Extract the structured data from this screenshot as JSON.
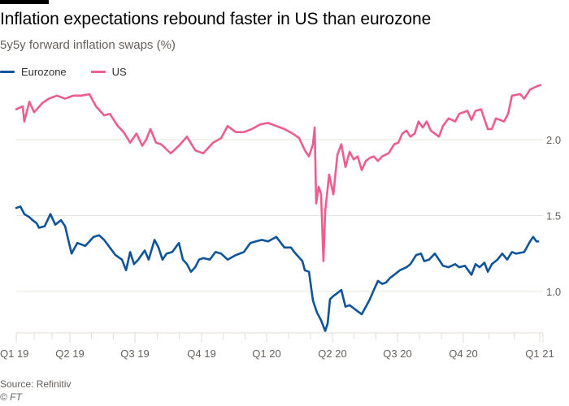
{
  "header": {
    "title": "Inflation expectations rebound faster in US than eurozone",
    "subtitle": "5y5y forward inflation swaps (%)"
  },
  "footer": {
    "source": "Source: Refinitiv",
    "copyright": "© FT"
  },
  "colors": {
    "eurozone": "#0f5499",
    "us": "#eb5e8d",
    "grid": "#e9e4df",
    "text": "#66605c"
  },
  "chart_data": {
    "type": "line",
    "title": "Inflation expectations rebound faster in US than eurozone",
    "subtitle": "5y5y forward inflation swaps (%)",
    "xlabel": "",
    "ylabel": "5y5y forward inflation swaps (%)",
    "x_units": "months since start of Q1 2019",
    "ylim": [
      0.73,
      2.45
    ],
    "y_ticks": [
      1.0,
      1.5,
      2.0
    ],
    "y_tick_labels": [
      "1.0",
      "1.5",
      "2.0"
    ],
    "y_axis_side": "right",
    "grid": true,
    "legend_position": "top-left",
    "x_ticks": [
      0,
      3,
      6,
      9,
      12,
      15,
      18,
      21,
      24
    ],
    "x_tick_labels": [
      "Q1 19",
      "Q2 19",
      "Q3 19",
      "Q4 19",
      "Q1 20",
      "Q2 20",
      "Q3 20",
      "Q4 20",
      "Q1 21"
    ],
    "series": [
      {
        "name": "Eurozone",
        "color": "#0f5499",
        "points": [
          [
            0,
            1.55
          ],
          [
            0.23,
            1.56
          ],
          [
            0.45,
            1.51
          ],
          [
            0.73,
            1.49
          ],
          [
            0.91,
            1.47
          ],
          [
            1.14,
            1.45
          ],
          [
            1.27,
            1.42
          ],
          [
            1.59,
            1.43
          ],
          [
            1.91,
            1.51
          ],
          [
            2.18,
            1.44
          ],
          [
            2.5,
            1.47
          ],
          [
            2.73,
            1.43
          ],
          [
            2.95,
            1.32
          ],
          [
            3.08,
            1.25
          ],
          [
            3.34,
            1.32
          ],
          [
            3.71,
            1.3
          ],
          [
            4.09,
            1.36
          ],
          [
            4.35,
            1.37
          ],
          [
            4.58,
            1.34
          ],
          [
            4.84,
            1.29
          ],
          [
            5.1,
            1.24
          ],
          [
            5.4,
            1.21
          ],
          [
            5.59,
            1.14
          ],
          [
            5.78,
            1.26
          ],
          [
            5.96,
            1.18
          ],
          [
            6.15,
            1.21
          ],
          [
            6.44,
            1.27
          ],
          [
            6.62,
            1.21
          ],
          [
            6.88,
            1.34
          ],
          [
            7.06,
            1.29
          ],
          [
            7.24,
            1.21
          ],
          [
            7.43,
            1.25
          ],
          [
            7.68,
            1.26
          ],
          [
            7.98,
            1.32
          ],
          [
            8.16,
            1.21
          ],
          [
            8.34,
            1.18
          ],
          [
            8.52,
            1.13
          ],
          [
            8.71,
            1.16
          ],
          [
            8.89,
            1.21
          ],
          [
            9.08,
            1.22
          ],
          [
            9.38,
            1.21
          ],
          [
            9.64,
            1.26
          ],
          [
            9.9,
            1.25
          ],
          [
            10.2,
            1.21
          ],
          [
            10.58,
            1.24
          ],
          [
            10.95,
            1.26
          ],
          [
            11.25,
            1.32
          ],
          [
            11.51,
            1.33
          ],
          [
            11.78,
            1.34
          ],
          [
            12.07,
            1.33
          ],
          [
            12.44,
            1.36
          ],
          [
            12.81,
            1.29
          ],
          [
            13.11,
            1.29
          ],
          [
            13.26,
            1.26
          ],
          [
            13.63,
            1.2
          ],
          [
            13.74,
            1.14
          ],
          [
            13.93,
            1.13
          ],
          [
            14.11,
            0.94
          ],
          [
            14.3,
            0.86
          ],
          [
            14.48,
            0.81
          ],
          [
            14.67,
            0.74
          ],
          [
            14.78,
            0.79
          ],
          [
            14.89,
            0.95
          ],
          [
            15.04,
            0.97
          ],
          [
            15.23,
            0.99
          ],
          [
            15.41,
            1.01
          ],
          [
            15.6,
            0.9
          ],
          [
            15.79,
            0.91
          ],
          [
            15.98,
            0.89
          ],
          [
            16.16,
            0.87
          ],
          [
            16.35,
            0.85
          ],
          [
            16.54,
            0.9
          ],
          [
            16.73,
            0.95
          ],
          [
            16.91,
            1.01
          ],
          [
            17.1,
            1.07
          ],
          [
            17.29,
            1.05
          ],
          [
            17.48,
            1.06
          ],
          [
            17.66,
            1.09
          ],
          [
            17.85,
            1.11
          ],
          [
            18.11,
            1.14
          ],
          [
            18.41,
            1.16
          ],
          [
            18.59,
            1.18
          ],
          [
            18.85,
            1.24
          ],
          [
            19.07,
            1.25
          ],
          [
            19.22,
            1.2
          ],
          [
            19.44,
            1.21
          ],
          [
            19.7,
            1.25
          ],
          [
            19.89,
            1.21
          ],
          [
            20.07,
            1.17
          ],
          [
            20.33,
            1.16
          ],
          [
            20.63,
            1.18
          ],
          [
            20.81,
            1.16
          ],
          [
            21.06,
            1.17
          ],
          [
            21.32,
            1.11
          ],
          [
            21.48,
            1.18
          ],
          [
            21.64,
            1.16
          ],
          [
            21.83,
            1.19
          ],
          [
            21.96,
            1.13
          ],
          [
            22.12,
            1.18
          ],
          [
            22.34,
            1.21
          ],
          [
            22.53,
            1.25
          ],
          [
            22.72,
            1.21
          ],
          [
            22.91,
            1.26
          ],
          [
            23.07,
            1.25
          ],
          [
            23.39,
            1.26
          ],
          [
            23.62,
            1.33
          ],
          [
            23.74,
            1.36
          ],
          [
            23.87,
            1.33
          ],
          [
            23.94,
            1.33
          ]
        ]
      },
      {
        "name": "US",
        "color": "#eb5e8d",
        "points": [
          [
            0,
            2.2
          ],
          [
            0.36,
            2.22
          ],
          [
            0.45,
            2.12
          ],
          [
            0.73,
            2.25
          ],
          [
            1.0,
            2.18
          ],
          [
            1.45,
            2.24
          ],
          [
            1.82,
            2.27
          ],
          [
            2.27,
            2.29
          ],
          [
            2.73,
            2.27
          ],
          [
            3.15,
            2.29
          ],
          [
            3.53,
            2.29
          ],
          [
            3.9,
            2.3
          ],
          [
            4.2,
            2.22
          ],
          [
            4.58,
            2.16
          ],
          [
            4.84,
            2.17
          ],
          [
            5.21,
            2.09
          ],
          [
            5.48,
            2.05
          ],
          [
            5.78,
            1.98
          ],
          [
            6.07,
            2.04
          ],
          [
            6.33,
            1.96
          ],
          [
            6.51,
            2.0
          ],
          [
            6.7,
            2.07
          ],
          [
            6.95,
            1.98
          ],
          [
            7.17,
            1.97
          ],
          [
            7.61,
            1.91
          ],
          [
            7.98,
            1.96
          ],
          [
            8.34,
            2.02
          ],
          [
            8.71,
            1.93
          ],
          [
            9.08,
            1.91
          ],
          [
            9.53,
            1.98
          ],
          [
            9.9,
            2.01
          ],
          [
            10.2,
            2.09
          ],
          [
            10.58,
            2.05
          ],
          [
            10.95,
            2.05
          ],
          [
            11.33,
            2.07
          ],
          [
            11.7,
            2.1
          ],
          [
            12.07,
            2.11
          ],
          [
            12.44,
            2.09
          ],
          [
            12.81,
            2.07
          ],
          [
            13.19,
            2.04
          ],
          [
            13.48,
            2.01
          ],
          [
            13.74,
            1.93
          ],
          [
            13.93,
            1.89
          ],
          [
            14.11,
            1.97
          ],
          [
            14.19,
            2.08
          ],
          [
            14.26,
            1.58
          ],
          [
            14.37,
            1.69
          ],
          [
            14.48,
            1.64
          ],
          [
            14.59,
            1.2
          ],
          [
            14.67,
            1.53
          ],
          [
            14.85,
            1.77
          ],
          [
            15.04,
            1.64
          ],
          [
            15.23,
            1.9
          ],
          [
            15.41,
            1.97
          ],
          [
            15.6,
            1.82
          ],
          [
            15.79,
            1.92
          ],
          [
            15.98,
            1.87
          ],
          [
            16.16,
            1.89
          ],
          [
            16.35,
            1.8
          ],
          [
            16.54,
            1.86
          ],
          [
            16.73,
            1.88
          ],
          [
            16.91,
            1.89
          ],
          [
            17.1,
            1.86
          ],
          [
            17.29,
            1.89
          ],
          [
            17.59,
            1.91
          ],
          [
            17.85,
            1.97
          ],
          [
            18.04,
            1.98
          ],
          [
            18.22,
            2.04
          ],
          [
            18.41,
            2.06
          ],
          [
            18.59,
            2.02
          ],
          [
            18.78,
            2.04
          ],
          [
            18.96,
            2.12
          ],
          [
            19.15,
            2.08
          ],
          [
            19.33,
            2.12
          ],
          [
            19.52,
            2.06
          ],
          [
            19.89,
            2.02
          ],
          [
            20.07,
            2.09
          ],
          [
            20.33,
            2.14
          ],
          [
            20.63,
            2.12
          ],
          [
            20.81,
            2.17
          ],
          [
            21.16,
            2.19
          ],
          [
            21.32,
            2.13
          ],
          [
            21.48,
            2.19
          ],
          [
            21.7,
            2.2
          ],
          [
            21.96,
            2.07
          ],
          [
            22.12,
            2.07
          ],
          [
            22.28,
            2.14
          ],
          [
            22.6,
            2.12
          ],
          [
            22.76,
            2.17
          ],
          [
            22.91,
            2.29
          ],
          [
            23.23,
            2.3
          ],
          [
            23.39,
            2.27
          ],
          [
            23.62,
            2.33
          ],
          [
            23.87,
            2.35
          ],
          [
            24.03,
            2.36
          ]
        ]
      }
    ]
  }
}
